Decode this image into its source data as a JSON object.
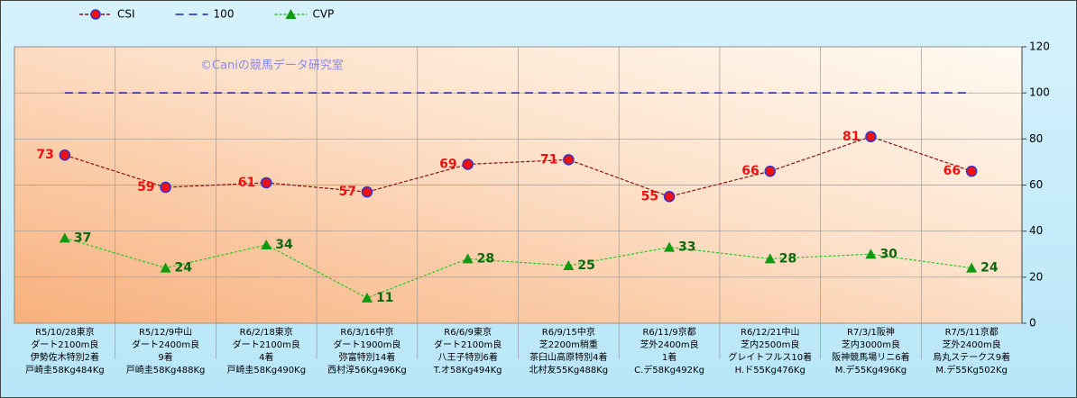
{
  "chart_data": {
    "type": "line",
    "annotation": "©Caniの競馬データ研究室",
    "categories": [
      [
        "R5/10/28東京",
        "ダート2100m良",
        "伊勢佐木特別2着",
        "戸崎圭58Kg484Kg"
      ],
      [
        "R5/12/9中山",
        "ダート2400m良",
        "9着",
        "戸崎圭58Kg488Kg"
      ],
      [
        "R6/2/18東京",
        "ダート2100m良",
        "4着",
        "戸崎圭58Kg490Kg"
      ],
      [
        "R6/3/16中京",
        "ダート1900m良",
        "弥富特別14着",
        "西村淳56Kg496Kg"
      ],
      [
        "R6/6/9東京",
        "ダート2100m良",
        "八王子特別6着",
        "T.オ58Kg494Kg"
      ],
      [
        "R6/9/15中京",
        "芝2200m稍重",
        "茶臼山高原特別4着",
        "北村友55Kg488Kg"
      ],
      [
        "R6/11/9京都",
        "芝外2400m良",
        "1着",
        "C.デ58Kg492Kg"
      ],
      [
        "R6/12/21中山",
        "芝内2500m良",
        "グレイトフルス10着",
        "H.ド55Kg476Kg"
      ],
      [
        "R7/3/1阪神",
        "芝内3000m良",
        "阪神競馬場リニ6着",
        "M.デ55Kg496Kg"
      ],
      [
        "R7/5/11京都",
        "芝外2400m良",
        "烏丸ステークス9着",
        "M.デ55Kg502Kg"
      ]
    ],
    "series": [
      {
        "name": "CSI",
        "color": "#8b1010",
        "marker": "circle",
        "data_labels": "left",
        "values": [
          73,
          59,
          61,
          57,
          69,
          71,
          55,
          66,
          81,
          66
        ]
      },
      {
        "name": "100",
        "color": "#1a1acc",
        "marker": "none",
        "data_labels": "none",
        "values": [
          100,
          100,
          100,
          100,
          100,
          100,
          100,
          100,
          100,
          100
        ]
      },
      {
        "name": "CVP",
        "color": "#22cc22",
        "marker": "triangle",
        "data_labels": "right",
        "values": [
          37,
          24,
          34,
          11,
          28,
          25,
          33,
          28,
          30,
          24
        ]
      }
    ],
    "ylim": [
      0,
      120
    ],
    "yticks": [
      0,
      20,
      40,
      60,
      80,
      100,
      120
    ],
    "grid": true,
    "legend": "top-left"
  }
}
